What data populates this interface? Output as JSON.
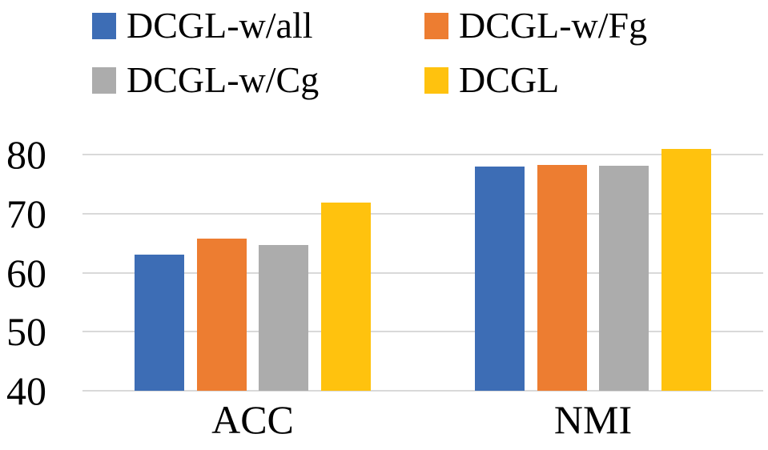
{
  "chart_data": {
    "type": "bar",
    "categories": [
      "ACC",
      "NMI"
    ],
    "series": [
      {
        "name": "DCGL-w/all",
        "color": "#3D6DB5",
        "values": [
          63.0,
          78.0
        ]
      },
      {
        "name": "DCGL-w/Fg",
        "color": "#ED7D31",
        "values": [
          65.7,
          78.2
        ]
      },
      {
        "name": "DCGL-w/Cg",
        "color": "#ACACAC",
        "values": [
          64.7,
          78.1
        ]
      },
      {
        "name": "DCGL",
        "color": "#FFC20E",
        "values": [
          71.9,
          80.9
        ]
      }
    ],
    "title": "",
    "xlabel": "",
    "ylabel": "",
    "ylim": [
      40,
      80
    ],
    "yticks": [
      40,
      50,
      60,
      70,
      80
    ],
    "grid": true,
    "gridline_color": "#D9D9D9",
    "text_color": "#000000",
    "legend_position": "top"
  }
}
